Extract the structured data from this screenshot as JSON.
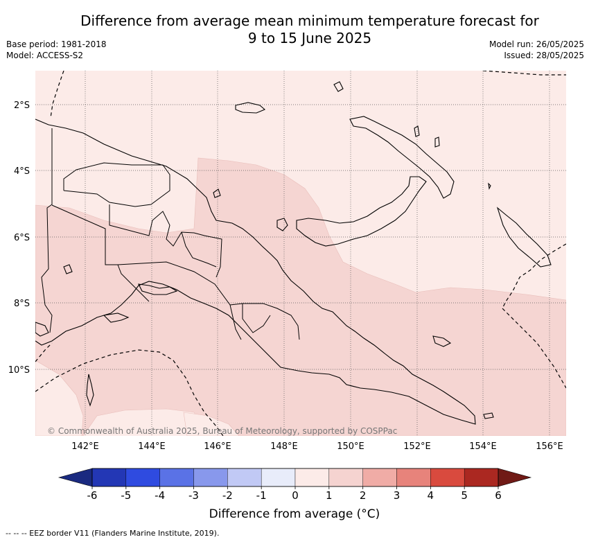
{
  "title_line1": "Difference from average mean minimum temperature forecast for",
  "title_line2": "9 to 15 June 2025",
  "base_period": "Base period: 1981-2018",
  "model": "Model: ACCESS-S2",
  "model_run": "Model run: 26/05/2025",
  "issued": "Issued: 28/05/2025",
  "lat_labels": [
    "2°S",
    "4°S",
    "6°S",
    "8°S",
    "10°S"
  ],
  "lon_labels": [
    "142°E",
    "144°E",
    "146°E",
    "148°E",
    "150°E",
    "152°E",
    "154°E",
    "156°E"
  ],
  "copyright": "© Commonwealth of Australia 2025, Bureau of Meteorology, supported by COSPPac",
  "colorbar": {
    "ticks": [
      "-6",
      "-5",
      "-4",
      "-3",
      "-2",
      "-1",
      "0",
      "1",
      "2",
      "3",
      "4",
      "5",
      "6"
    ],
    "colors": [
      "#1a2a80",
      "#2337b5",
      "#2f4be0",
      "#5a72e6",
      "#8898ec",
      "#c1c9f5",
      "#e8ecfa",
      "#fcebe8",
      "#f5d3d0",
      "#f0aca6",
      "#e7837b",
      "#d94a3e",
      "#ab2821",
      "#701a16"
    ],
    "label": "Difference from average (°C)"
  },
  "field_colors": {
    "light": "#fcebe8",
    "medium": "#f5d5d2"
  },
  "footnote": "-- -- -- EEZ border V11 (Flanders Marine Institute, 2019)."
}
